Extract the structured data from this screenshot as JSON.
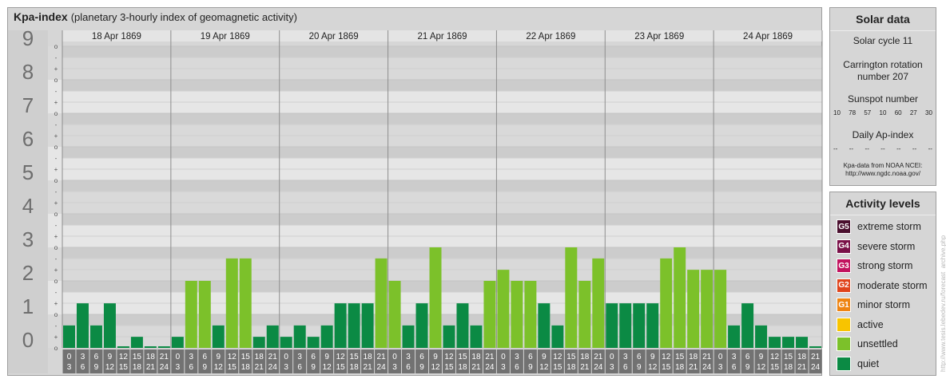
{
  "title": {
    "main": "Kpa-index",
    "subtitle": "(planetary 3-hourly index of geomagnetic activity)"
  },
  "chart_data": {
    "type": "bar",
    "y_axis_labels": [
      "0",
      "1",
      "2",
      "3",
      "4",
      "5",
      "6",
      "7",
      "8",
      "9"
    ],
    "sub_tick_labels": [
      "o",
      "+",
      "-",
      "o",
      "+",
      "-",
      "o",
      "+",
      "-",
      "o",
      "+",
      "-",
      "o",
      "+",
      "-",
      "o",
      "+",
      "-",
      "o",
      "+",
      "-",
      "o",
      "+",
      "-",
      "o",
      "+",
      "-",
      "o"
    ],
    "ylim": [
      0,
      9
    ],
    "days": [
      "18 Apr 1869",
      "19 Apr 1869",
      "20 Apr 1869",
      "21 Apr 1869",
      "22 Apr 1869",
      "23 Apr 1869",
      "24 Apr 1869"
    ],
    "interval_start_labels": [
      "0",
      "3",
      "6",
      "9",
      "12",
      "15",
      "18",
      "21"
    ],
    "interval_end_labels": [
      "3",
      "6",
      "9",
      "12",
      "15",
      "18",
      "21",
      "24"
    ],
    "values": [
      [
        0.67,
        1.33,
        0.67,
        1.33,
        0.0,
        0.33,
        0.0,
        0.0
      ],
      [
        0.33,
        2.0,
        2.0,
        0.67,
        2.67,
        2.67,
        0.33,
        0.67
      ],
      [
        0.33,
        0.67,
        0.33,
        0.67,
        1.33,
        1.33,
        1.33,
        2.67
      ],
      [
        2.0,
        0.67,
        1.33,
        3.0,
        0.67,
        1.33,
        0.67,
        2.0
      ],
      [
        2.33,
        2.0,
        2.0,
        1.33,
        0.67,
        3.0,
        2.0,
        2.67
      ],
      [
        1.33,
        1.33,
        1.33,
        1.33,
        2.67,
        3.0,
        2.33,
        2.33
      ],
      [
        2.33,
        0.67,
        1.33,
        0.67,
        0.33,
        0.33,
        0.33,
        0.0
      ]
    ],
    "colors": {
      "quiet": "#0b8a44",
      "unsettled": "#7cc12a"
    }
  },
  "solar": {
    "title": "Solar data",
    "cycle": "Solar cycle 11",
    "carrington_line1": "Carrington rotation",
    "carrington_line2": "number 207",
    "sunspot_title": "Sunspot number",
    "sunspot_values": [
      "10",
      "78",
      "57",
      "10",
      "60",
      "27",
      "30"
    ],
    "ap_title": "Daily Ap-index",
    "ap_values": [
      "--",
      "--",
      "--",
      "--",
      "--",
      "--",
      "--"
    ],
    "source_line1": "Kpa-data from NOAA NCEI:",
    "source_line2": "http://www.ngdc.noaa.gov/"
  },
  "activity": {
    "title": "Activity levels",
    "levels": [
      {
        "badge": "G5",
        "label": "extreme storm",
        "color": "#4a0f2e"
      },
      {
        "badge": "G4",
        "label": "severe storm",
        "color": "#7a1048"
      },
      {
        "badge": "G3",
        "label": "strong storm",
        "color": "#c2135f"
      },
      {
        "badge": "G2",
        "label": "moderate storm",
        "color": "#e0441c"
      },
      {
        "badge": "G1",
        "label": "minor storm",
        "color": "#ee8412"
      },
      {
        "badge": "",
        "label": "active",
        "color": "#f8c400"
      },
      {
        "badge": "",
        "label": "unsettled",
        "color": "#7cc12a"
      },
      {
        "badge": "",
        "label": "quiet",
        "color": "#0b8a44"
      }
    ]
  },
  "watermark": "http://www.tesis.lebedev.ru/forecast_archive.php"
}
